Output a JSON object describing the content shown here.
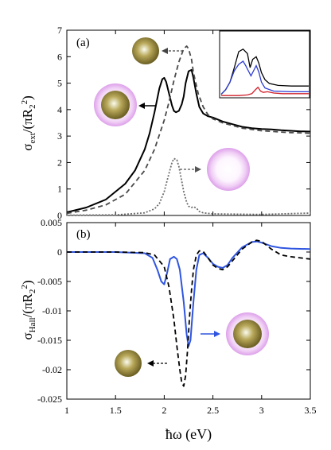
{
  "chart_data": [
    {
      "panel_label": "(a)",
      "type": "line",
      "ylabel_main": "σ",
      "ylabel_sub": "ext",
      "ylabel_tail": "/(πR",
      "ylabel_sub2": "2",
      "ylabel_sup": "2",
      "ylabel_end": ")",
      "xlim": [
        1,
        3.5
      ],
      "ylim": [
        0,
        7
      ],
      "yticks": [
        "0",
        "1",
        "2",
        "3",
        "4",
        "5",
        "6",
        "7"
      ],
      "series": [
        {
          "style": "solid",
          "color": "#000000",
          "x": [
            1.0,
            1.2,
            1.4,
            1.6,
            1.7,
            1.8,
            1.85,
            1.9,
            1.95,
            1.98,
            2.0,
            2.02,
            2.05,
            2.08,
            2.1,
            2.12,
            2.15,
            2.18,
            2.2,
            2.22,
            2.25,
            2.28,
            2.3,
            2.33,
            2.36,
            2.4,
            2.45,
            2.5,
            2.6,
            2.7,
            2.8,
            2.9,
            3.0,
            3.1,
            3.2,
            3.3,
            3.4,
            3.5
          ],
          "y": [
            0.12,
            0.3,
            0.6,
            1.2,
            1.7,
            2.5,
            3.1,
            3.9,
            4.8,
            5.15,
            5.2,
            5.05,
            4.6,
            4.15,
            3.95,
            3.9,
            3.95,
            4.2,
            4.5,
            5.0,
            5.45,
            5.5,
            5.2,
            4.6,
            4.1,
            3.85,
            3.75,
            3.7,
            3.55,
            3.45,
            3.35,
            3.3,
            3.27,
            3.25,
            3.22,
            3.2,
            3.18,
            3.17
          ]
        },
        {
          "style": "dashed",
          "color": "#4a4a4a",
          "x": [
            1.0,
            1.2,
            1.4,
            1.6,
            1.8,
            1.9,
            2.0,
            2.05,
            2.1,
            2.15,
            2.2,
            2.23,
            2.25,
            2.28,
            2.3,
            2.35,
            2.4,
            2.45,
            2.5,
            2.6,
            2.7,
            2.8,
            2.9,
            3.0,
            3.1,
            3.2,
            3.3,
            3.4,
            3.5
          ],
          "y": [
            0.08,
            0.2,
            0.4,
            0.8,
            1.7,
            2.5,
            3.6,
            4.3,
            5.1,
            5.8,
            6.3,
            6.4,
            6.3,
            5.9,
            5.4,
            4.6,
            4.1,
            3.8,
            3.65,
            3.5,
            3.4,
            3.3,
            3.25,
            3.2,
            3.18,
            3.15,
            3.13,
            3.12,
            3.1
          ]
        },
        {
          "style": "dotted",
          "color": "#6e6e6e",
          "x": [
            1.0,
            1.5,
            1.8,
            1.9,
            1.95,
            2.0,
            2.05,
            2.08,
            2.1,
            2.13,
            2.15,
            2.18,
            2.2,
            2.23,
            2.25,
            2.28,
            2.3,
            2.33,
            2.36,
            2.4,
            2.5,
            3.0,
            3.5
          ],
          "y": [
            0.01,
            0.02,
            0.1,
            0.25,
            0.45,
            0.9,
            1.6,
            2.0,
            2.15,
            2.1,
            1.85,
            1.3,
            0.9,
            0.5,
            0.35,
            0.3,
            0.33,
            0.28,
            0.15,
            0.1,
            0.06,
            0.04,
            0.09
          ]
        }
      ]
    },
    {
      "panel_label": "(b)",
      "type": "line",
      "ylabel_main": "σ",
      "ylabel_sub": "Hall",
      "ylabel_tail": "/(πR",
      "ylabel_sub2": "2",
      "ylabel_sup": "2",
      "ylabel_end": ")",
      "xlabel": "ħω (eV)",
      "xlim": [
        1,
        3.5
      ],
      "ylim": [
        -0.025,
        0.005
      ],
      "xticks": [
        "1",
        "1.5",
        "2",
        "2.5",
        "3",
        "3.5"
      ],
      "yticks": [
        "0.005",
        "0",
        "-0.005",
        "-0.01",
        "-0.015",
        "-0.02",
        "-0.025"
      ],
      "series": [
        {
          "style": "solid",
          "color": "#2f55e0",
          "x": [
            1.0,
            1.5,
            1.8,
            1.88,
            1.93,
            1.97,
            2.0,
            2.03,
            2.06,
            2.1,
            2.13,
            2.16,
            2.2,
            2.23,
            2.25,
            2.27,
            2.3,
            2.33,
            2.36,
            2.4,
            2.45,
            2.5,
            2.55,
            2.6,
            2.65,
            2.7,
            2.8,
            2.9,
            2.95,
            3.0,
            3.1,
            3.2,
            3.3,
            3.5
          ],
          "y": [
            0.0,
            0.0,
            -0.0002,
            -0.001,
            -0.003,
            -0.005,
            -0.0055,
            -0.0035,
            -0.0012,
            -0.0008,
            -0.0012,
            -0.003,
            -0.0085,
            -0.014,
            -0.016,
            -0.015,
            -0.0085,
            -0.003,
            -0.0005,
            -0.0002,
            -0.001,
            -0.002,
            -0.0025,
            -0.0027,
            -0.0022,
            -0.001,
            0.0008,
            0.0017,
            0.0018,
            0.0016,
            0.001,
            0.0007,
            0.0006,
            0.0005
          ]
        },
        {
          "style": "dashed",
          "color": "#000000",
          "x": [
            1.0,
            1.5,
            1.8,
            1.9,
            2.0,
            2.05,
            2.1,
            2.13,
            2.16,
            2.18,
            2.2,
            2.22,
            2.24,
            2.26,
            2.28,
            2.3,
            2.33,
            2.36,
            2.4,
            2.45,
            2.5,
            2.55,
            2.6,
            2.65,
            2.7,
            2.8,
            2.9,
            2.95,
            3.0,
            3.1,
            3.2,
            3.3,
            3.5
          ],
          "y": [
            0.0,
            0.0,
            -0.0001,
            -0.0005,
            -0.0025,
            -0.006,
            -0.0115,
            -0.016,
            -0.02,
            -0.0222,
            -0.0228,
            -0.021,
            -0.0165,
            -0.011,
            -0.0065,
            -0.003,
            -0.0005,
            0.0002,
            0.0001,
            -0.001,
            -0.0022,
            -0.0028,
            -0.003,
            -0.0025,
            -0.0015,
            0.0005,
            0.0017,
            0.002,
            0.0018,
            0.0005,
            -0.0005,
            -0.0008,
            -0.0012
          ]
        }
      ]
    }
  ],
  "inset": {
    "series": [
      {
        "color": "#000000",
        "points": [
          [
            0,
            0.97
          ],
          [
            0.05,
            0.9
          ],
          [
            0.1,
            0.78
          ],
          [
            0.15,
            0.55
          ],
          [
            0.2,
            0.3
          ],
          [
            0.25,
            0.26
          ],
          [
            0.3,
            0.33
          ],
          [
            0.33,
            0.55
          ],
          [
            0.36,
            0.42
          ],
          [
            0.4,
            0.38
          ],
          [
            0.43,
            0.48
          ],
          [
            0.46,
            0.63
          ],
          [
            0.5,
            0.74
          ],
          [
            0.55,
            0.8
          ],
          [
            0.65,
            0.83
          ],
          [
            0.8,
            0.84
          ],
          [
            1.0,
            0.84
          ]
        ]
      },
      {
        "color": "#2c3bd0",
        "points": [
          [
            0,
            0.97
          ],
          [
            0.05,
            0.9
          ],
          [
            0.1,
            0.78
          ],
          [
            0.15,
            0.6
          ],
          [
            0.2,
            0.5
          ],
          [
            0.25,
            0.45
          ],
          [
            0.28,
            0.52
          ],
          [
            0.31,
            0.6
          ],
          [
            0.34,
            0.68
          ],
          [
            0.37,
            0.6
          ],
          [
            0.4,
            0.52
          ],
          [
            0.43,
            0.62
          ],
          [
            0.46,
            0.78
          ],
          [
            0.5,
            0.87
          ],
          [
            0.6,
            0.92
          ],
          [
            0.8,
            0.93
          ],
          [
            1.0,
            0.93
          ]
        ]
      },
      {
        "color": "#d0202a",
        "points": [
          [
            0,
            0.99
          ],
          [
            0.2,
            0.99
          ],
          [
            0.3,
            0.98
          ],
          [
            0.35,
            0.96
          ],
          [
            0.39,
            0.9
          ],
          [
            0.42,
            0.86
          ],
          [
            0.45,
            0.92
          ],
          [
            0.48,
            0.94
          ],
          [
            0.53,
            0.93
          ],
          [
            0.6,
            0.95
          ],
          [
            0.7,
            0.96
          ],
          [
            1.0,
            0.96
          ]
        ]
      }
    ]
  },
  "colors": {
    "core_dark": "#8b7a2d",
    "shell": "#e6b4f0"
  },
  "particles": [
    {
      "panel": 0,
      "kind": "core",
      "label": "core-sphere-icon"
    },
    {
      "panel": 0,
      "kind": "core-shell",
      "label": "core-shell-sphere-icon"
    },
    {
      "panel": 0,
      "kind": "shell",
      "label": "hollow-shell-icon"
    },
    {
      "panel": 1,
      "kind": "core-shell",
      "label": "core-shell-sphere-icon"
    },
    {
      "panel": 1,
      "kind": "core",
      "label": "core-sphere-icon"
    }
  ]
}
